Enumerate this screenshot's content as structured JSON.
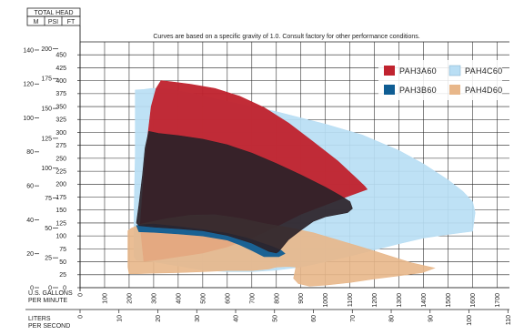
{
  "chart_data": {
    "type": "area",
    "note": "Curves are based on a specific gravity of 1.0. Consult factory for other performance conditions.",
    "header": {
      "total_head": "TOTAL HEAD",
      "m": "M",
      "psi": "PSI",
      "ft": "FT"
    },
    "x_axis_gpm": {
      "label_lines": [
        "U.S. GALLONS",
        "PER MINUTE"
      ],
      "ticks": [
        0,
        100,
        200,
        300,
        400,
        500,
        600,
        700,
        800,
        900,
        1000,
        1100,
        1200,
        1300,
        1400,
        1500,
        1600,
        1700
      ],
      "range": [
        0,
        1750
      ]
    },
    "x_axis_lps": {
      "label_lines": [
        "LITERS",
        "PER SECOND"
      ],
      "ticks": [
        0,
        10,
        20,
        30,
        40,
        50,
        60,
        70,
        80,
        90,
        100,
        110
      ],
      "range": [
        0,
        110.4
      ]
    },
    "y_axis_ft": {
      "ticks": [
        0,
        25,
        50,
        75,
        100,
        125,
        150,
        175,
        200,
        225,
        250,
        275,
        300,
        325,
        350,
        375,
        400,
        425,
        450
      ],
      "range": [
        0,
        475
      ]
    },
    "y_axis_psi": {
      "ticks": [
        0,
        25,
        50,
        75,
        100,
        125,
        150,
        175,
        200
      ],
      "range": [
        0,
        205.7
      ]
    },
    "y_axis_m": {
      "ticks": [
        0,
        20,
        40,
        60,
        80,
        100,
        120,
        140
      ],
      "range": [
        0,
        144.8
      ]
    },
    "grid": true,
    "legend_position": "top-right",
    "series": [
      {
        "name": "PAH4C60",
        "color": "#b9def4",
        "opacity": 0.92,
        "polygon": [
          [
            225,
            382
          ],
          [
            260,
            383
          ],
          [
            290,
            385
          ],
          [
            350,
            385
          ],
          [
            450,
            376
          ],
          [
            600,
            360
          ],
          [
            800,
            340
          ],
          [
            1000,
            316
          ],
          [
            1150,
            295
          ],
          [
            1300,
            265
          ],
          [
            1400,
            239
          ],
          [
            1500,
            208
          ],
          [
            1560,
            186
          ],
          [
            1600,
            166
          ],
          [
            1610,
            145
          ],
          [
            1600,
            109
          ],
          [
            1500,
            103
          ],
          [
            1400,
            96
          ],
          [
            1300,
            85
          ],
          [
            1200,
            73
          ],
          [
            1100,
            61
          ],
          [
            1000,
            50
          ],
          [
            900,
            40
          ],
          [
            800,
            34
          ],
          [
            700,
            31
          ],
          [
            600,
            31
          ],
          [
            500,
            34
          ],
          [
            400,
            42
          ],
          [
            300,
            50
          ],
          [
            230,
            53
          ],
          [
            220,
            60
          ],
          [
            220,
            140
          ],
          [
            225,
            260
          ]
        ]
      },
      {
        "name": "PAH3A60",
        "color": "#c0232f",
        "opacity": 0.96,
        "polygon": [
          [
            330,
            400
          ],
          [
            370,
            398
          ],
          [
            450,
            393
          ],
          [
            550,
            385
          ],
          [
            650,
            370
          ],
          [
            750,
            348
          ],
          [
            850,
            318
          ],
          [
            950,
            282
          ],
          [
            1050,
            245
          ],
          [
            1120,
            214
          ],
          [
            1160,
            196
          ],
          [
            1170,
            190
          ],
          [
            1100,
            178
          ],
          [
            1000,
            160
          ],
          [
            900,
            142
          ],
          [
            800,
            118
          ],
          [
            700,
            96
          ],
          [
            600,
            79
          ],
          [
            500,
            67
          ],
          [
            430,
            62
          ],
          [
            400,
            60
          ],
          [
            320,
            54
          ],
          [
            260,
            51
          ],
          [
            245,
            120
          ],
          [
            265,
            250
          ],
          [
            290,
            350
          ],
          [
            310,
            385
          ]
        ]
      },
      {
        "name": "PAH4D60",
        "color": "#e8b78a",
        "opacity": 0.9,
        "polygon": [
          [
            195,
            110
          ],
          [
            210,
            115
          ],
          [
            250,
            123
          ],
          [
            350,
            133
          ],
          [
            450,
            140
          ],
          [
            550,
            141
          ],
          [
            650,
            134
          ],
          [
            750,
            124
          ],
          [
            850,
            116
          ],
          [
            950,
            106
          ],
          [
            1050,
            92
          ],
          [
            1150,
            78
          ],
          [
            1250,
            63
          ],
          [
            1350,
            48
          ],
          [
            1445,
            38
          ],
          [
            1395,
            29
          ],
          [
            1300,
            23
          ],
          [
            1200,
            17
          ],
          [
            1100,
            10
          ],
          [
            1000,
            5
          ],
          [
            935,
            3
          ],
          [
            890,
            8
          ],
          [
            870,
            18
          ],
          [
            880,
            40
          ],
          [
            850,
            41
          ],
          [
            800,
            40
          ],
          [
            770,
            36
          ],
          [
            700,
            33
          ],
          [
            600,
            33
          ],
          [
            500,
            31
          ],
          [
            400,
            29
          ],
          [
            300,
            28
          ],
          [
            230,
            27
          ],
          [
            200,
            27
          ],
          [
            195,
            40
          ],
          [
            195,
            80
          ]
        ]
      },
      {
        "name": "PAH3B60",
        "color": "#0f5d93",
        "opacity": 0.95,
        "polygon": [
          [
            230,
            120
          ],
          [
            260,
            122
          ],
          [
            300,
            123
          ],
          [
            400,
            118
          ],
          [
            500,
            112
          ],
          [
            600,
            105
          ],
          [
            680,
            96
          ],
          [
            730,
            88
          ],
          [
            780,
            80
          ],
          [
            820,
            72
          ],
          [
            835,
            66
          ],
          [
            810,
            60
          ],
          [
            750,
            60
          ],
          [
            700,
            72
          ],
          [
            650,
            83
          ],
          [
            600,
            92
          ],
          [
            500,
            100
          ],
          [
            400,
            104
          ],
          [
            300,
            107
          ],
          [
            240,
            108
          ]
        ]
      },
      {
        "name": "PAH3A60-inner",
        "color": "#2b2228",
        "opacity": 0.92,
        "polygon": [
          [
            280,
            302
          ],
          [
            320,
            298
          ],
          [
            400,
            294
          ],
          [
            500,
            287
          ],
          [
            600,
            276
          ],
          [
            700,
            260
          ],
          [
            800,
            240
          ],
          [
            900,
            218
          ],
          [
            1000,
            194
          ],
          [
            1060,
            178
          ],
          [
            1100,
            166
          ],
          [
            1110,
            153
          ],
          [
            1090,
            145
          ],
          [
            1000,
            137
          ],
          [
            950,
            128
          ],
          [
            900,
            111
          ],
          [
            850,
            93
          ],
          [
            810,
            70
          ],
          [
            800,
            67
          ],
          [
            770,
            70
          ],
          [
            700,
            86
          ],
          [
            600,
            101
          ],
          [
            500,
            110
          ],
          [
            400,
            114
          ],
          [
            300,
            117
          ],
          [
            240,
            120
          ],
          [
            230,
            125
          ],
          [
            240,
            160
          ],
          [
            255,
            220
          ],
          [
            265,
            270
          ]
        ]
      }
    ],
    "legend": [
      {
        "name": "PAH3A60",
        "color": "#c0232f"
      },
      {
        "name": "PAH4C60",
        "color": "#b9def4"
      },
      {
        "name": "PAH3B60",
        "color": "#0f5d93"
      },
      {
        "name": "PAH4D60",
        "color": "#e8b78a"
      }
    ]
  }
}
